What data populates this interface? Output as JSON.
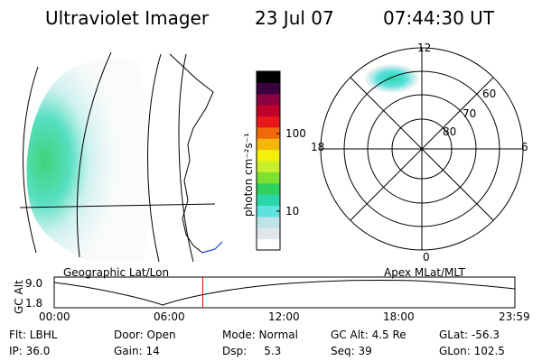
{
  "header": {
    "title": "Ultraviolet Imager",
    "date": "23 Jul 07",
    "time": "07:44:30 UT"
  },
  "colorbar": {
    "unit": "photon cm⁻²s⁻¹",
    "ticks": [
      "100",
      "10"
    ],
    "colors": [
      "#ffffff",
      "#dfe7ea",
      "#bfe3e8",
      "#5ee2e0",
      "#2ad6a8",
      "#30d15e",
      "#7de032",
      "#c9f02a",
      "#f4f00a",
      "#f5b50a",
      "#f06a0a",
      "#e8171a",
      "#c0002a",
      "#8a0040",
      "#3a0040",
      "#000000"
    ]
  },
  "left_panel": {
    "label": "Geographic Lat/Lon"
  },
  "right_panel": {
    "label": "Apex MLat/MLT",
    "mlt_labels": [
      "12",
      "18",
      "6",
      "0"
    ],
    "lat_labels": [
      "60",
      "70",
      "80"
    ]
  },
  "timeline": {
    "ylabel": "GC Alt",
    "y_ticks": [
      "9.0",
      "1.8"
    ],
    "x_ticks": [
      "00:00",
      "06:00",
      "12:00",
      "18:00",
      "23:59"
    ],
    "marker_time": "07:44",
    "marker_color": "#e00000"
  },
  "info": {
    "row1": {
      "filter": "Flt: LBHL",
      "door": "Door: Open",
      "mode": "Mode: Normal",
      "gc_alt": "GC Alt: 4.5 Re",
      "glat": "GLat: -56.3"
    },
    "row2": {
      "ip": "IP: 36.0",
      "gain": "Gain: 14",
      "dsp": "Dsp:     5.3",
      "seq": "Seq: 39",
      "glon": "GLon: 102.5"
    }
  }
}
